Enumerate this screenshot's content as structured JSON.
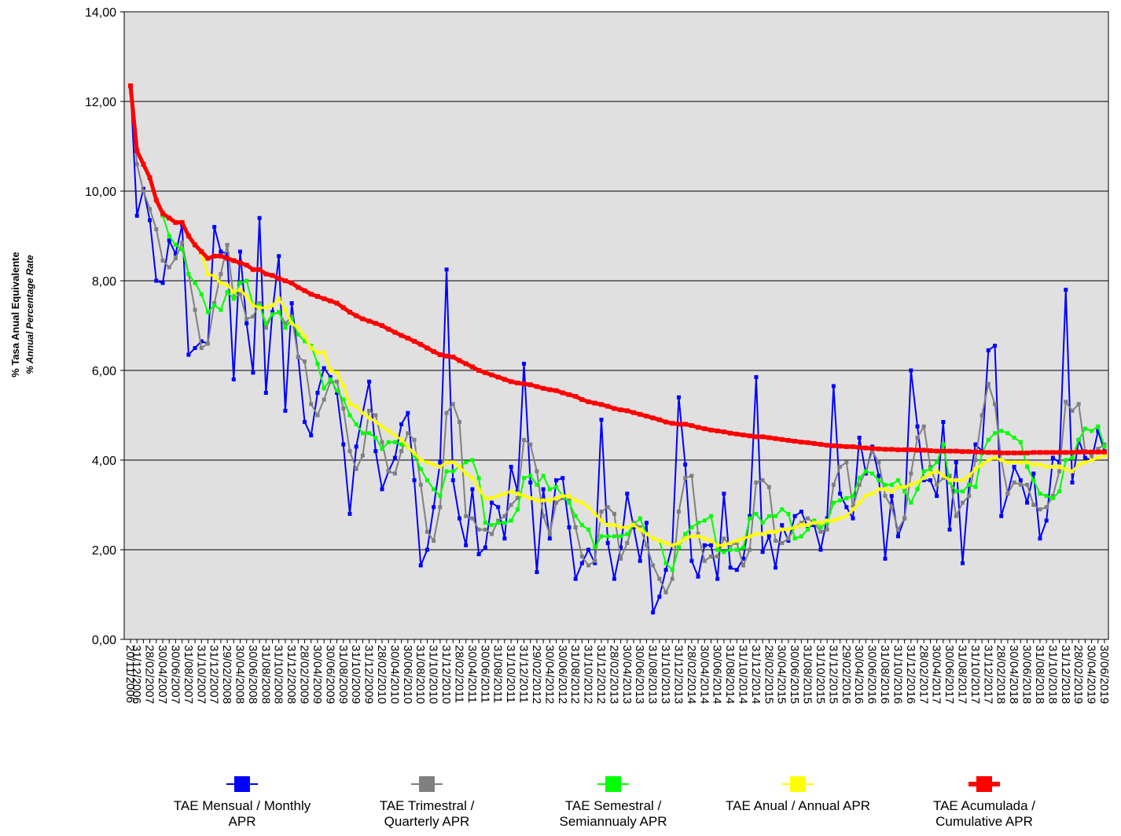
{
  "chart_data": {
    "type": "line",
    "y_label": "% Tasa Anual Equivalente",
    "y_label_2": "% Annual Percentage Rate",
    "ylim": [
      0,
      14
    ],
    "yticks": [
      {
        "value": 0,
        "label": "0,00"
      },
      {
        "value": 2,
        "label": "2,00"
      },
      {
        "value": 4,
        "label": "4,00"
      },
      {
        "value": 6,
        "label": "6,00"
      },
      {
        "value": 8,
        "label": "8,00"
      },
      {
        "value": 10,
        "label": "10,00"
      },
      {
        "value": 12,
        "label": "12,00"
      },
      {
        "value": 14,
        "label": "14,00"
      }
    ],
    "grid": true,
    "legend": "bottom",
    "background": "#e0e0e0",
    "categories": [
      "20/11/2006",
      "31/12/2006",
      null,
      "28/02/2007",
      null,
      "30/04/2007",
      null,
      "30/06/2007",
      null,
      "31/08/2007",
      null,
      "31/10/2007",
      null,
      "31/12/2007",
      null,
      "29/02/2008",
      null,
      "30/04/2008",
      null,
      "30/06/2008",
      null,
      "31/08/2008",
      null,
      "31/10/2008",
      null,
      "31/12/2008",
      null,
      "28/02/2009",
      null,
      "30/04/2009",
      null,
      "30/06/2009",
      null,
      "31/08/2009",
      null,
      "31/10/2009",
      null,
      "31/12/2009",
      null,
      "28/02/2010",
      null,
      "30/04/2010",
      null,
      "30/06/2010",
      null,
      "31/08/2010",
      null,
      "31/10/2010",
      null,
      "31/12/2010",
      null,
      "28/02/2011",
      null,
      "30/04/2011",
      null,
      "30/06/2011",
      null,
      "31/08/2011",
      null,
      "31/10/2011",
      null,
      "31/12/2011",
      null,
      "29/02/2012",
      null,
      "30/04/2012",
      null,
      "30/06/2012",
      null,
      "31/08/2012",
      null,
      "31/10/2012",
      null,
      "31/12/2012",
      null,
      "28/02/2013",
      null,
      "30/04/2013",
      null,
      "30/06/2013",
      null,
      "31/08/2013",
      null,
      "31/10/2013",
      null,
      "31/12/2013",
      null,
      "28/02/2014",
      null,
      "30/04/2014",
      null,
      "30/06/2014",
      null,
      "31/08/2014",
      null,
      "31/10/2014",
      null,
      "31/12/2014",
      null,
      "28/02/2015",
      null,
      "30/04/2015",
      null,
      "30/06/2015",
      null,
      "31/08/2015",
      null,
      "31/10/2015",
      null,
      "31/12/2015",
      null,
      "29/02/2016",
      null,
      "30/04/2016",
      null,
      "30/06/2016",
      null,
      "31/08/2016",
      null,
      "31/10/2016",
      null,
      "31/12/2016",
      null,
      "28/02/2017",
      null,
      "30/04/2017",
      null,
      "30/06/2017",
      null,
      "31/08/2017",
      null,
      "31/10/2017",
      null,
      "31/12/2017",
      null,
      "28/02/2018",
      null,
      "30/04/2018",
      null,
      "30/06/2018",
      null,
      "31/08/2018",
      null,
      "31/10/2018",
      null,
      "31/12/2018",
      null,
      "28/02/2019",
      null,
      "30/04/2019",
      null,
      "30/06/2019"
    ],
    "series": [
      {
        "name": "TAE Mensual / Monthly APR",
        "color": "#0000ff",
        "width": 2,
        "values": [
          12.35,
          9.45,
          10.05,
          9.35,
          8.0,
          7.95,
          8.9,
          8.6,
          9.25,
          6.35,
          6.5,
          6.65,
          6.6,
          9.2,
          8.65,
          8.6,
          5.8,
          8.65,
          7.05,
          5.95,
          9.4,
          5.5,
          7.3,
          8.55,
          5.1,
          7.5,
          6.3,
          4.85,
          4.55,
          5.5,
          6.05,
          5.85,
          5.5,
          4.35,
          2.8,
          4.3,
          5.05,
          5.75,
          4.2,
          3.35,
          3.75,
          4.05,
          4.8,
          5.05,
          3.55,
          1.65,
          2.0,
          2.95,
          3.95,
          8.25,
          3.55,
          2.7,
          2.1,
          3.35,
          1.9,
          2.05,
          3.05,
          2.95,
          2.25,
          3.85,
          3.3,
          6.15,
          3.5,
          1.5,
          3.35,
          2.25,
          3.55,
          3.6,
          2.5,
          1.35,
          1.7,
          2.0,
          1.7,
          4.9,
          2.15,
          1.35,
          2.05,
          3.25,
          2.5,
          1.75,
          2.6,
          0.6,
          0.95,
          1.55,
          2.1,
          5.4,
          3.9,
          1.75,
          1.4,
          2.1,
          2.1,
          1.35,
          3.25,
          1.6,
          1.55,
          1.8,
          2.75,
          5.85,
          1.95,
          2.3,
          1.6,
          2.55,
          2.2,
          2.75,
          2.85,
          2.5,
          2.55,
          2.0,
          2.7,
          5.65,
          3.25,
          2.95,
          2.7,
          4.5,
          3.7,
          4.3,
          3.65,
          1.8,
          3.2,
          2.3,
          2.7,
          6.0,
          4.75,
          3.55,
          3.55,
          3.2,
          4.85,
          2.45,
          3.95,
          1.7,
          3.45,
          4.35,
          4.2,
          6.45,
          6.55,
          2.75,
          3.25,
          3.85,
          3.55,
          3.05,
          3.7,
          2.25,
          2.65,
          4.05,
          3.95,
          7.8,
          3.5,
          4.45,
          4.05,
          4.0,
          4.65,
          4.2
        ]
      },
      {
        "name": "TAE Trimestral / Quarterly APR",
        "color": "#808080",
        "width": 2,
        "values": [
          12.35,
          10.6,
          10.0,
          9.6,
          9.15,
          8.45,
          8.3,
          8.5,
          8.85,
          8.15,
          7.35,
          6.5,
          6.6,
          7.5,
          8.15,
          8.8,
          7.6,
          7.7,
          7.15,
          7.2,
          7.5,
          6.95,
          7.25,
          7.3,
          7.05,
          7.2,
          6.3,
          6.2,
          5.25,
          5.0,
          5.35,
          5.75,
          5.75,
          5.15,
          4.2,
          3.8,
          4.1,
          5.1,
          5.0,
          4.4,
          3.75,
          3.7,
          4.2,
          4.6,
          4.45,
          3.45,
          2.4,
          2.2,
          2.95,
          5.05,
          5.25,
          4.85,
          2.75,
          2.7,
          2.45,
          2.45,
          2.35,
          2.65,
          2.75,
          3.0,
          3.15,
          4.45,
          4.35,
          3.75,
          2.75,
          2.35,
          3.05,
          3.15,
          3.1,
          2.5,
          1.85,
          1.65,
          1.75,
          2.85,
          2.95,
          2.8,
          1.8,
          2.15,
          2.6,
          2.5,
          2.1,
          1.65,
          1.35,
          1.05,
          1.35,
          2.85,
          3.6,
          3.65,
          2.35,
          1.75,
          1.85,
          1.85,
          2.25,
          2.1,
          2.15,
          1.65,
          2.0,
          3.5,
          3.55,
          3.4,
          2.2,
          2.15,
          2.25,
          2.5,
          2.6,
          2.7,
          2.6,
          2.4,
          2.45,
          3.45,
          3.85,
          3.95,
          2.95,
          3.45,
          3.75,
          4.2,
          3.95,
          3.2,
          2.95,
          2.45,
          2.7,
          3.7,
          4.5,
          4.75,
          3.85,
          3.45,
          3.6,
          3.65,
          2.75,
          3.05,
          3.2,
          4.0,
          5.0,
          5.7,
          5.25,
          4.0,
          3.25,
          3.5,
          3.45,
          3.45,
          3.0,
          2.9,
          2.95,
          3.2,
          3.75,
          5.3,
          5.1,
          5.25,
          4.2,
          4.1,
          4.25,
          4.35
        ]
      },
      {
        "name": "TAE Semestral / Semiannualy APR",
        "color": "#00ff00",
        "width": 2,
        "values": [
          12.35,
          10.9,
          10.6,
          10.3,
          9.8,
          9.45,
          9.0,
          8.8,
          8.7,
          8.15,
          7.95,
          7.7,
          7.3,
          7.45,
          7.35,
          7.75,
          7.6,
          7.95,
          8.0,
          7.45,
          7.45,
          7.05,
          7.25,
          7.3,
          6.95,
          7.15,
          6.8,
          6.65,
          6.55,
          6.15,
          5.6,
          5.8,
          5.55,
          5.35,
          5.0,
          4.8,
          4.6,
          4.6,
          4.5,
          4.25,
          4.4,
          4.4,
          4.35,
          4.3,
          4.1,
          3.8,
          3.55,
          3.35,
          3.2,
          3.75,
          3.75,
          3.85,
          3.95,
          4.0,
          3.6,
          2.6,
          2.55,
          2.6,
          2.6,
          2.65,
          2.9,
          3.6,
          3.65,
          3.45,
          3.65,
          3.35,
          3.4,
          3.2,
          3.05,
          2.75,
          2.55,
          2.45,
          2.05,
          2.3,
          2.3,
          2.3,
          2.3,
          2.35,
          2.55,
          2.7,
          2.35,
          2.25,
          2.2,
          1.7,
          1.55,
          2.05,
          2.35,
          2.5,
          2.6,
          2.65,
          2.75,
          2.0,
          1.95,
          2.0,
          2.0,
          2.05,
          2.7,
          2.8,
          2.6,
          2.75,
          2.75,
          2.9,
          2.8,
          2.25,
          2.3,
          2.45,
          2.65,
          2.5,
          2.6,
          3.05,
          3.1,
          3.15,
          3.2,
          3.6,
          3.75,
          3.7,
          3.55,
          3.45,
          3.45,
          3.55,
          3.3,
          3.05,
          3.35,
          3.75,
          3.8,
          3.95,
          4.35,
          3.5,
          3.3,
          3.3,
          3.45,
          3.4,
          4.15,
          4.45,
          4.6,
          4.65,
          4.6,
          4.5,
          4.4,
          3.85,
          3.55,
          3.25,
          3.2,
          3.15,
          3.3,
          4.0,
          4.05,
          4.45,
          4.7,
          4.65,
          4.75,
          4.3
        ]
      },
      {
        "name": "TAE Anual / Annual APR",
        "color": "#ffff00",
        "width": 3,
        "values": [
          12.35,
          10.9,
          10.6,
          10.3,
          9.8,
          9.5,
          9.4,
          9.3,
          9.3,
          9.0,
          8.8,
          8.6,
          8.15,
          8.1,
          7.95,
          7.9,
          7.75,
          7.8,
          7.65,
          7.45,
          7.4,
          7.4,
          7.45,
          7.6,
          7.35,
          7.05,
          6.95,
          6.75,
          6.5,
          6.4,
          6.4,
          6.0,
          5.95,
          5.65,
          5.25,
          5.2,
          5.05,
          4.95,
          4.85,
          4.75,
          4.65,
          4.55,
          4.45,
          4.3,
          4.15,
          4.0,
          3.95,
          3.9,
          3.85,
          3.95,
          3.95,
          3.85,
          3.7,
          3.6,
          3.35,
          3.15,
          3.15,
          3.2,
          3.25,
          3.3,
          3.25,
          3.2,
          3.15,
          3.1,
          3.1,
          3.1,
          3.15,
          3.2,
          3.2,
          3.1,
          3.05,
          2.95,
          2.8,
          2.65,
          2.55,
          2.55,
          2.5,
          2.5,
          2.55,
          2.45,
          2.35,
          2.25,
          2.2,
          2.15,
          2.1,
          2.15,
          2.25,
          2.3,
          2.3,
          2.25,
          2.2,
          2.1,
          2.1,
          2.15,
          2.2,
          2.25,
          2.3,
          2.35,
          2.35,
          2.4,
          2.4,
          2.45,
          2.45,
          2.5,
          2.55,
          2.55,
          2.6,
          2.6,
          2.65,
          2.65,
          2.7,
          2.75,
          2.9,
          3.05,
          3.2,
          3.25,
          3.35,
          3.35,
          3.3,
          3.4,
          3.4,
          3.45,
          3.5,
          3.6,
          3.7,
          3.75,
          3.65,
          3.55,
          3.55,
          3.55,
          3.65,
          3.8,
          3.9,
          4.0,
          4.05,
          4.0,
          3.95,
          3.95,
          3.95,
          3.95,
          3.9,
          3.9,
          3.85,
          3.85,
          3.85,
          3.8,
          3.75,
          3.9,
          3.95,
          4.0,
          4.05,
          4.1
        ]
      },
      {
        "name": "TAE Acumulada / Cumulative APR",
        "color": "#ff0000",
        "width": 5,
        "values": [
          12.35,
          10.9,
          10.6,
          10.3,
          9.8,
          9.5,
          9.4,
          9.3,
          9.3,
          9.0,
          8.8,
          8.65,
          8.5,
          8.55,
          8.55,
          8.5,
          8.45,
          8.4,
          8.35,
          8.25,
          8.25,
          8.15,
          8.12,
          8.05,
          8.0,
          7.95,
          7.85,
          7.78,
          7.7,
          7.65,
          7.6,
          7.55,
          7.5,
          7.4,
          7.3,
          7.22,
          7.15,
          7.1,
          7.05,
          7.0,
          6.92,
          6.85,
          6.78,
          6.72,
          6.65,
          6.58,
          6.5,
          6.42,
          6.35,
          6.32,
          6.3,
          6.22,
          6.15,
          6.08,
          6.0,
          5.95,
          5.9,
          5.85,
          5.8,
          5.75,
          5.72,
          5.7,
          5.68,
          5.64,
          5.6,
          5.57,
          5.55,
          5.5,
          5.46,
          5.42,
          5.35,
          5.3,
          5.27,
          5.24,
          5.2,
          5.15,
          5.12,
          5.1,
          5.06,
          5.02,
          4.98,
          4.94,
          4.9,
          4.85,
          4.82,
          4.8,
          4.8,
          4.77,
          4.73,
          4.7,
          4.67,
          4.65,
          4.63,
          4.6,
          4.58,
          4.56,
          4.54,
          4.52,
          4.52,
          4.5,
          4.48,
          4.46,
          4.44,
          4.42,
          4.4,
          4.39,
          4.37,
          4.35,
          4.33,
          4.32,
          4.31,
          4.3,
          4.3,
          4.28,
          4.27,
          4.26,
          4.25,
          4.24,
          4.24,
          4.23,
          4.23,
          4.23,
          4.22,
          4.22,
          4.21,
          4.2,
          4.2,
          4.2,
          4.2,
          4.19,
          4.19,
          4.18,
          4.18,
          4.17,
          4.17,
          4.16,
          4.16,
          4.16,
          4.16,
          4.16,
          4.17,
          4.17,
          4.17,
          4.17,
          4.17,
          4.17,
          4.17,
          4.18,
          4.18,
          4.18,
          4.18,
          4.18
        ]
      }
    ]
  }
}
